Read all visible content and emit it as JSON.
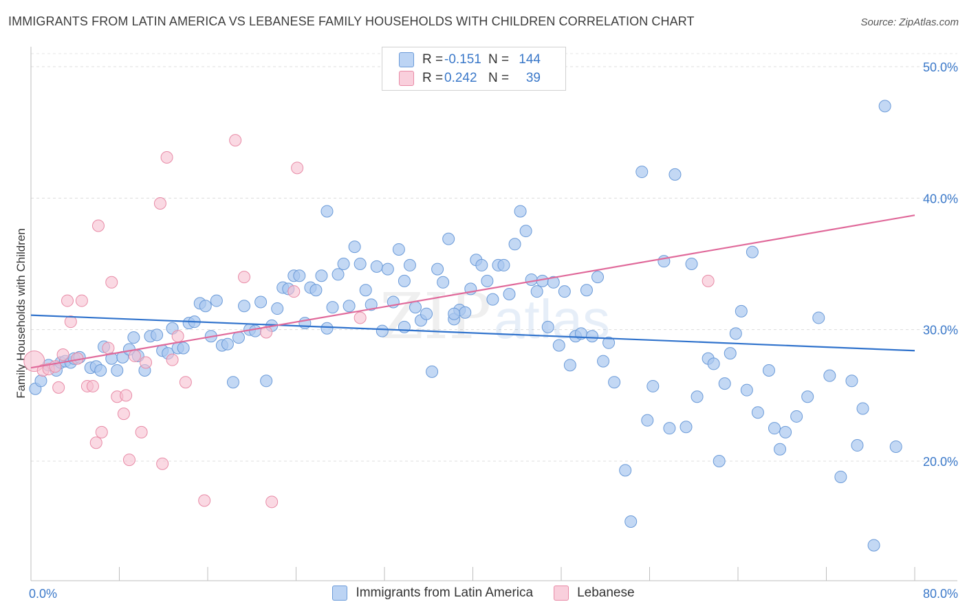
{
  "header": {
    "title": "IMMIGRANTS FROM LATIN AMERICA VS LEBANESE FAMILY HOUSEHOLDS WITH CHILDREN CORRELATION CHART",
    "source": "Source: ZipAtlas.com"
  },
  "watermark": {
    "zip": "ZIP",
    "atlas": "atlas"
  },
  "legend_top": {
    "rows": [
      {
        "r_label": "R =",
        "r_value": "-0.151",
        "n_label": "N =",
        "n_value": "144"
      },
      {
        "r_label": "R =",
        "r_value": "0.242",
        "n_label": "N =",
        "n_value": "39"
      }
    ]
  },
  "legend_bottom": {
    "items": [
      "Immigrants from Latin America",
      "Lebanese"
    ]
  },
  "colors": {
    "blue_fill": "#aac8f0",
    "blue_stroke": "#6a9ad8",
    "blue_line": "#2f72cc",
    "pink_fill": "#f7c0d0",
    "pink_stroke": "#e88aa6",
    "pink_line": "#e0699a",
    "axis_text": "#3a78c9"
  },
  "chart_data": {
    "type": "scatter",
    "title": "IMMIGRANTS FROM LATIN AMERICA VS LEBANESE FAMILY HOUSEHOLDS WITH CHILDREN CORRELATION CHART",
    "xlabel": "",
    "ylabel": "Family Households with Children",
    "xlim": [
      0,
      80
    ],
    "ylim": [
      10,
      52
    ],
    "x_tick_labels": [
      "0.0%",
      "80.0%"
    ],
    "y_ticks": [
      20,
      30,
      40,
      50
    ],
    "y_tick_labels": [
      "20.0%",
      "30.0%",
      "40.0%",
      "50.0%"
    ],
    "grid": "horizontal dashed",
    "legend_position": "top-center",
    "series": [
      {
        "name": "Immigrants from Latin America",
        "color": "#aac8f0",
        "trend": {
          "x": [
            0,
            80
          ],
          "y": [
            31.1,
            28.4
          ]
        },
        "points": [
          [
            0.4,
            25.5
          ],
          [
            0.9,
            26.1
          ],
          [
            1.6,
            27.3
          ],
          [
            2.3,
            26.9
          ],
          [
            2.7,
            27.5
          ],
          [
            3.1,
            27.6
          ],
          [
            3.6,
            27.5
          ],
          [
            3.9,
            27.8
          ],
          [
            4.4,
            27.9
          ],
          [
            5.4,
            27.1
          ],
          [
            5.9,
            27.2
          ],
          [
            6.3,
            26.9
          ],
          [
            6.6,
            28.7
          ],
          [
            7.3,
            27.8
          ],
          [
            7.8,
            26.9
          ],
          [
            8.3,
            27.9
          ],
          [
            8.9,
            28.5
          ],
          [
            9.3,
            29.4
          ],
          [
            9.7,
            28.0
          ],
          [
            10.3,
            26.9
          ],
          [
            10.8,
            29.5
          ],
          [
            11.4,
            29.6
          ],
          [
            11.9,
            28.4
          ],
          [
            12.4,
            28.2
          ],
          [
            12.8,
            30.1
          ],
          [
            13.3,
            28.6
          ],
          [
            13.8,
            28.6
          ],
          [
            14.3,
            30.5
          ],
          [
            14.8,
            30.6
          ],
          [
            15.3,
            32.0
          ],
          [
            15.8,
            31.8
          ],
          [
            16.3,
            29.5
          ],
          [
            16.8,
            32.2
          ],
          [
            17.3,
            28.8
          ],
          [
            17.8,
            28.9
          ],
          [
            18.3,
            26.0
          ],
          [
            18.8,
            29.4
          ],
          [
            19.3,
            31.8
          ],
          [
            19.8,
            30.0
          ],
          [
            20.3,
            29.9
          ],
          [
            20.8,
            32.1
          ],
          [
            21.3,
            26.1
          ],
          [
            21.8,
            30.3
          ],
          [
            22.3,
            31.6
          ],
          [
            22.8,
            33.2
          ],
          [
            23.3,
            33.1
          ],
          [
            23.8,
            34.1
          ],
          [
            24.3,
            34.1
          ],
          [
            24.8,
            30.5
          ],
          [
            25.3,
            33.2
          ],
          [
            25.8,
            33.0
          ],
          [
            26.3,
            34.1
          ],
          [
            26.8,
            39.0
          ],
          [
            27.3,
            31.7
          ],
          [
            27.8,
            34.2
          ],
          [
            28.3,
            35.0
          ],
          [
            28.8,
            31.8
          ],
          [
            29.3,
            36.3
          ],
          [
            29.8,
            35.0
          ],
          [
            30.3,
            33.0
          ],
          [
            30.8,
            31.9
          ],
          [
            31.3,
            34.8
          ],
          [
            31.8,
            29.9
          ],
          [
            32.3,
            34.6
          ],
          [
            32.8,
            32.1
          ],
          [
            33.3,
            36.1
          ],
          [
            33.8,
            33.7
          ],
          [
            34.3,
            34.9
          ],
          [
            34.8,
            31.7
          ],
          [
            35.3,
            30.7
          ],
          [
            35.8,
            31.2
          ],
          [
            36.3,
            26.8
          ],
          [
            36.8,
            34.6
          ],
          [
            37.3,
            33.6
          ],
          [
            37.8,
            36.9
          ],
          [
            38.3,
            30.8
          ],
          [
            38.8,
            31.5
          ],
          [
            39.3,
            31.3
          ],
          [
            39.8,
            33.1
          ],
          [
            40.3,
            35.3
          ],
          [
            40.8,
            34.9
          ],
          [
            41.3,
            33.7
          ],
          [
            41.8,
            32.3
          ],
          [
            42.3,
            34.9
          ],
          [
            42.8,
            34.9
          ],
          [
            43.3,
            32.7
          ],
          [
            43.8,
            36.5
          ],
          [
            44.3,
            39.0
          ],
          [
            44.8,
            37.5
          ],
          [
            45.3,
            33.8
          ],
          [
            45.8,
            32.9
          ],
          [
            46.3,
            33.7
          ],
          [
            46.8,
            30.2
          ],
          [
            47.3,
            33.6
          ],
          [
            47.8,
            28.8
          ],
          [
            48.3,
            32.9
          ],
          [
            48.8,
            27.3
          ],
          [
            49.3,
            29.5
          ],
          [
            49.8,
            29.7
          ],
          [
            50.3,
            33.0
          ],
          [
            50.8,
            29.5
          ],
          [
            51.3,
            34.0
          ],
          [
            51.8,
            27.6
          ],
          [
            52.3,
            29.0
          ],
          [
            52.8,
            26.0
          ],
          [
            53.8,
            19.3
          ],
          [
            54.3,
            15.4
          ],
          [
            55.3,
            42.0
          ],
          [
            55.8,
            23.1
          ],
          [
            56.3,
            25.7
          ],
          [
            57.3,
            35.2
          ],
          [
            57.8,
            22.5
          ],
          [
            58.3,
            41.8
          ],
          [
            59.3,
            22.6
          ],
          [
            59.8,
            35.0
          ],
          [
            60.3,
            24.9
          ],
          [
            61.3,
            27.8
          ],
          [
            61.8,
            27.4
          ],
          [
            62.3,
            20.0
          ],
          [
            62.8,
            25.9
          ],
          [
            63.3,
            28.2
          ],
          [
            63.8,
            29.7
          ],
          [
            64.3,
            31.4
          ],
          [
            64.8,
            25.4
          ],
          [
            65.3,
            35.9
          ],
          [
            65.8,
            23.7
          ],
          [
            66.8,
            26.9
          ],
          [
            67.3,
            22.5
          ],
          [
            67.8,
            20.9
          ],
          [
            68.3,
            22.2
          ],
          [
            69.3,
            23.4
          ],
          [
            70.3,
            24.9
          ],
          [
            71.3,
            30.9
          ],
          [
            72.3,
            26.5
          ],
          [
            73.3,
            18.8
          ],
          [
            74.3,
            26.1
          ],
          [
            74.8,
            21.2
          ],
          [
            75.3,
            24.0
          ],
          [
            76.3,
            13.6
          ],
          [
            77.3,
            47.0
          ],
          [
            78.3,
            21.1
          ],
          [
            26.8,
            30.1
          ],
          [
            33.8,
            30.2
          ],
          [
            38.3,
            31.2
          ]
        ]
      },
      {
        "name": "Lebanese",
        "color": "#f7c0d0",
        "trend": {
          "x": [
            0,
            80
          ],
          "y": [
            27.1,
            38.7
          ]
        },
        "points": [
          [
            0.3,
            27.6
          ],
          [
            1.1,
            26.9
          ],
          [
            1.6,
            27.0
          ],
          [
            2.2,
            27.2
          ],
          [
            2.5,
            25.6
          ],
          [
            2.9,
            28.1
          ],
          [
            3.3,
            32.2
          ],
          [
            3.6,
            30.6
          ],
          [
            4.2,
            27.8
          ],
          [
            4.6,
            32.2
          ],
          [
            5.1,
            25.7
          ],
          [
            5.6,
            25.7
          ],
          [
            5.9,
            21.4
          ],
          [
            6.1,
            37.9
          ],
          [
            6.4,
            22.2
          ],
          [
            7.0,
            28.6
          ],
          [
            7.3,
            33.6
          ],
          [
            7.8,
            24.9
          ],
          [
            8.4,
            23.6
          ],
          [
            8.6,
            25.0
          ],
          [
            8.9,
            20.1
          ],
          [
            9.4,
            28.0
          ],
          [
            10.0,
            22.2
          ],
          [
            10.4,
            27.5
          ],
          [
            11.7,
            39.6
          ],
          [
            11.9,
            19.8
          ],
          [
            12.3,
            43.1
          ],
          [
            12.8,
            27.7
          ],
          [
            13.3,
            29.5
          ],
          [
            14.0,
            26.0
          ],
          [
            15.7,
            17.0
          ],
          [
            18.5,
            44.4
          ],
          [
            19.3,
            34.0
          ],
          [
            21.3,
            29.8
          ],
          [
            21.8,
            16.9
          ],
          [
            23.8,
            32.9
          ],
          [
            24.1,
            42.3
          ],
          [
            29.8,
            30.9
          ],
          [
            61.3,
            33.7
          ]
        ]
      }
    ]
  }
}
